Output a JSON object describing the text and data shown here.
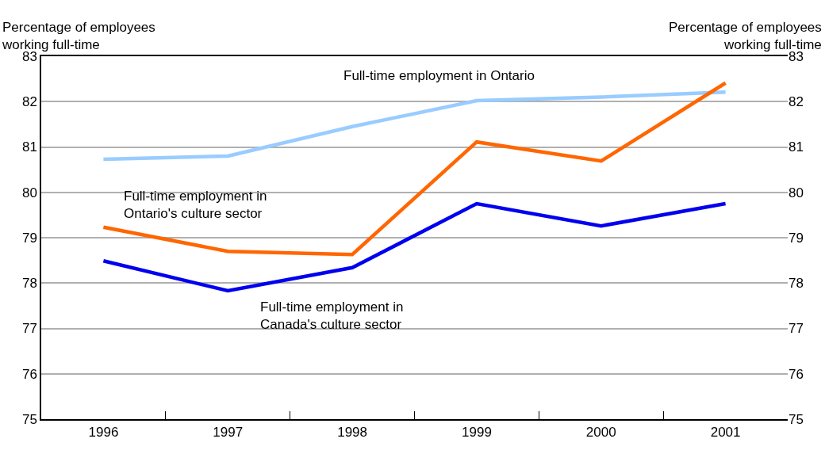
{
  "chart_data": {
    "type": "line",
    "ylabel": "Percentage of employees\nworking full-time",
    "y2label": "Percentage of employees\nworking full-time",
    "categories": [
      "1996",
      "1997",
      "1998",
      "1999",
      "2000",
      "2001"
    ],
    "series": [
      {
        "name": "Full-time employment in Ontario",
        "color": "#99ccff",
        "values": [
          80.73,
          80.8,
          81.45,
          82.02,
          82.1,
          82.21
        ]
      },
      {
        "name": "Full-time employment in\nOntario's culture sector",
        "color": "#ff6600",
        "values": [
          79.23,
          78.7,
          78.63,
          81.11,
          80.69,
          82.41
        ]
      },
      {
        "name": "Full-time employment in\nCanada's culture sector",
        "color": "#0000ee",
        "values": [
          78.49,
          77.83,
          78.34,
          79.75,
          79.26,
          79.75
        ]
      }
    ],
    "ylim": [
      75,
      83
    ],
    "yticks": [
      75,
      76,
      77,
      78,
      79,
      80,
      81,
      82,
      83
    ],
    "y2lim": [
      75,
      83
    ],
    "y2ticks": [
      75,
      76,
      77,
      78,
      79,
      80,
      81,
      82,
      83
    ],
    "grid": "y",
    "legend": false,
    "marker": "none",
    "line_style": "solid"
  }
}
